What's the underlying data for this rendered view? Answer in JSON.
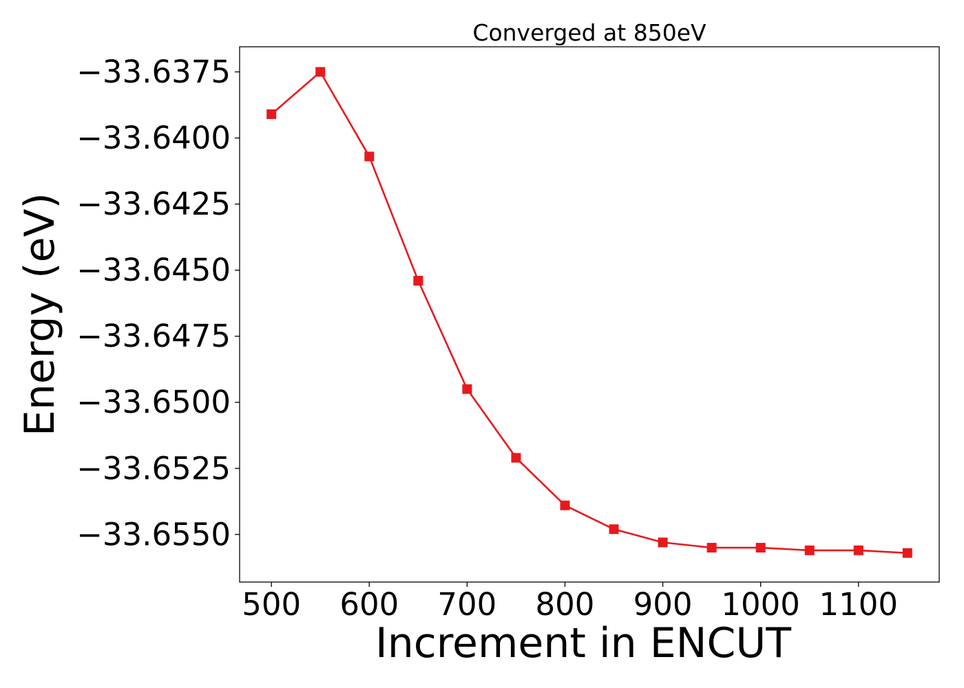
{
  "chart_data": {
    "type": "line",
    "title": "Converged at 850eV",
    "xlabel": "Increment in ENCUT",
    "ylabel": "Energy (eV)",
    "x": [
      500,
      550,
      600,
      650,
      700,
      750,
      800,
      850,
      900,
      950,
      1000,
      1050,
      1100,
      1150
    ],
    "series": [
      {
        "values": [
          -33.6391,
          -33.6375,
          -33.6407,
          -33.6454,
          -33.6495,
          -33.6521,
          -33.6539,
          -33.6548,
          -33.6553,
          -33.6555,
          -33.6555,
          -33.6556,
          -33.6556,
          -33.6557
        ],
        "color": "#e8191c",
        "marker": "square"
      }
    ],
    "xlim": [
      467.5,
      1182.5
    ],
    "ylim": [
      -33.6568,
      -33.63655
    ],
    "xticks": [
      500,
      600,
      700,
      800,
      900,
      1000,
      1100
    ],
    "xtick_labels": [
      "500",
      "600",
      "700",
      "800",
      "900",
      "1000",
      "1100"
    ],
    "yticks": [
      -33.6375,
      -33.64,
      -33.6425,
      -33.645,
      -33.6475,
      -33.65,
      -33.6525,
      -33.655
    ],
    "ytick_labels": [
      "−33.6375",
      "−33.6400",
      "−33.6425",
      "−33.6450",
      "−33.6475",
      "−33.6500",
      "−33.6525",
      "−33.6550"
    ],
    "grid": false,
    "legend": "none"
  }
}
